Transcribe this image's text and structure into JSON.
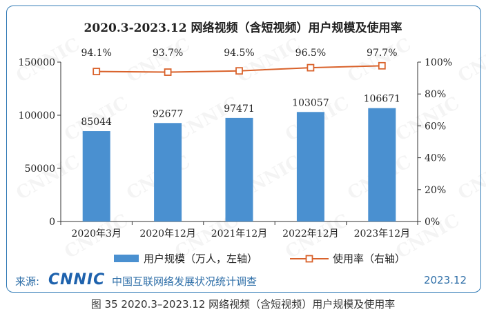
{
  "chart_data": {
    "type": "bar",
    "title": "2020.3-2023.12 网络视频（含短视频）用户规模及使用率",
    "categories": [
      "2020年3月",
      "2020年12月",
      "2021年12月",
      "2022年12月",
      "2023年12月"
    ],
    "series": [
      {
        "name": "用户规模（万人，左轴）",
        "type": "bar",
        "axis": "left",
        "values": [
          85044,
          92677,
          97471,
          103057,
          106671
        ],
        "labels": [
          "85044",
          "92677",
          "97471",
          "103057",
          "106671"
        ]
      },
      {
        "name": "使用率（右轴）",
        "type": "line",
        "axis": "right",
        "values": [
          94.1,
          93.7,
          94.5,
          96.5,
          97.7
        ],
        "labels": [
          "94.1%",
          "93.7%",
          "94.5%",
          "96.5%",
          "97.7%"
        ]
      }
    ],
    "y_left": {
      "ylim": [
        0,
        150000
      ],
      "ticks": [
        "0",
        "50000",
        "100000",
        "150000"
      ]
    },
    "y_right": {
      "ylim": [
        0,
        100
      ],
      "ticks": [
        "0%",
        "20%",
        "40%",
        "60%",
        "80%",
        "100%"
      ]
    },
    "grid": false,
    "legend": "bottom",
    "colors": {
      "bar": "#4a90d0",
      "line": "#d9622b",
      "marker_fill": "#ffffff"
    }
  },
  "watermark": "CNNIC",
  "source": {
    "label": "来源:",
    "logo": "CNNIC",
    "org": "中国互联网络发展状况统计调查",
    "date": "2023.12"
  },
  "caption": "图 35  2020.3–2023.12 网络视频（含短视频）用户规模及使用率"
}
